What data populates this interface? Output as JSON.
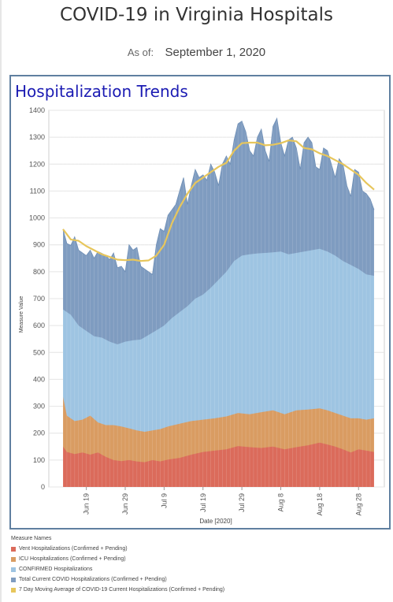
{
  "header": {
    "title": "COVID-19 in Virginia Hospitals",
    "asof_label": "As of:",
    "asof_value": "September 1, 2020"
  },
  "panel": {
    "title": "Hospitalization Trends"
  },
  "colors": {
    "vent": "#db6b5b",
    "icu": "#d99c62",
    "confirmed": "#9ec4e2",
    "total": "#7f9cc0",
    "avg": "#e7c65c",
    "grid": "#e4e4e4"
  },
  "chart_data": {
    "type": "area",
    "xlabel": "Date [2020]",
    "ylabel": "Measure Value",
    "ylim": [
      0,
      1400
    ],
    "yticks": [
      0,
      100,
      200,
      300,
      400,
      500,
      600,
      700,
      800,
      900,
      1000,
      1100,
      1200,
      1300,
      1400
    ],
    "date_range": [
      "2020-06-13",
      "2020-09-01"
    ],
    "xticks": [
      {
        "label": "Jun 19",
        "date": "2020-06-19"
      },
      {
        "label": "Jun 29",
        "date": "2020-06-29"
      },
      {
        "label": "Jul 9",
        "date": "2020-07-09"
      },
      {
        "label": "Jul 19",
        "date": "2020-07-19"
      },
      {
        "label": "Jul 29",
        "date": "2020-07-29"
      },
      {
        "label": "Aug 8",
        "date": "2020-08-08"
      },
      {
        "label": "Aug 18",
        "date": "2020-08-18"
      },
      {
        "label": "Aug 28",
        "date": "2020-08-28"
      }
    ],
    "legend_title": "Measure Names",
    "series": [
      {
        "name": "Vent Hospitalizations (Confirmed + Pending)",
        "key": "vent",
        "anchors": [
          [
            "2020-06-13",
            150
          ],
          [
            "2020-06-14",
            130
          ],
          [
            "2020-06-16",
            122
          ],
          [
            "2020-06-18",
            128
          ],
          [
            "2020-06-20",
            120
          ],
          [
            "2020-06-22",
            128
          ],
          [
            "2020-06-24",
            112
          ],
          [
            "2020-06-26",
            100
          ],
          [
            "2020-06-28",
            96
          ],
          [
            "2020-06-30",
            100
          ],
          [
            "2020-07-02",
            95
          ],
          [
            "2020-07-04",
            92
          ],
          [
            "2020-07-06",
            100
          ],
          [
            "2020-07-08",
            95
          ],
          [
            "2020-07-10",
            102
          ],
          [
            "2020-07-13",
            108
          ],
          [
            "2020-07-16",
            120
          ],
          [
            "2020-07-19",
            130
          ],
          [
            "2020-07-22",
            135
          ],
          [
            "2020-07-25",
            140
          ],
          [
            "2020-07-28",
            152
          ],
          [
            "2020-07-31",
            148
          ],
          [
            "2020-08-03",
            145
          ],
          [
            "2020-08-06",
            150
          ],
          [
            "2020-08-09",
            140
          ],
          [
            "2020-08-12",
            148
          ],
          [
            "2020-08-15",
            155
          ],
          [
            "2020-08-18",
            165
          ],
          [
            "2020-08-20",
            158
          ],
          [
            "2020-08-22",
            150
          ],
          [
            "2020-08-24",
            140
          ],
          [
            "2020-08-26",
            128
          ],
          [
            "2020-08-28",
            140
          ],
          [
            "2020-08-30",
            135
          ],
          [
            "2020-09-01",
            130
          ]
        ]
      },
      {
        "name": "ICU Hospitalizations (Confirmed + Pending)",
        "key": "icu",
        "anchors": [
          [
            "2020-06-13",
            335
          ],
          [
            "2020-06-14",
            265
          ],
          [
            "2020-06-16",
            245
          ],
          [
            "2020-06-18",
            250
          ],
          [
            "2020-06-20",
            265
          ],
          [
            "2020-06-22",
            240
          ],
          [
            "2020-06-24",
            230
          ],
          [
            "2020-06-26",
            230
          ],
          [
            "2020-06-28",
            225
          ],
          [
            "2020-06-30",
            218
          ],
          [
            "2020-07-02",
            210
          ],
          [
            "2020-07-04",
            205
          ],
          [
            "2020-07-06",
            210
          ],
          [
            "2020-07-08",
            215
          ],
          [
            "2020-07-10",
            225
          ],
          [
            "2020-07-13",
            235
          ],
          [
            "2020-07-16",
            245
          ],
          [
            "2020-07-19",
            250
          ],
          [
            "2020-07-22",
            255
          ],
          [
            "2020-07-25",
            262
          ],
          [
            "2020-07-28",
            275
          ],
          [
            "2020-07-31",
            270
          ],
          [
            "2020-08-03",
            278
          ],
          [
            "2020-08-06",
            285
          ],
          [
            "2020-08-09",
            270
          ],
          [
            "2020-08-12",
            285
          ],
          [
            "2020-08-15",
            288
          ],
          [
            "2020-08-18",
            292
          ],
          [
            "2020-08-20",
            285
          ],
          [
            "2020-08-22",
            275
          ],
          [
            "2020-08-24",
            265
          ],
          [
            "2020-08-26",
            255
          ],
          [
            "2020-08-28",
            255
          ],
          [
            "2020-08-30",
            250
          ],
          [
            "2020-09-01",
            255
          ]
        ]
      },
      {
        "name": "CONFIRMED Hospitalizations",
        "key": "confirmed",
        "anchors": [
          [
            "2020-06-13",
            660
          ],
          [
            "2020-06-15",
            640
          ],
          [
            "2020-06-17",
            600
          ],
          [
            "2020-06-19",
            580
          ],
          [
            "2020-06-21",
            560
          ],
          [
            "2020-06-23",
            555
          ],
          [
            "2020-06-25",
            540
          ],
          [
            "2020-06-27",
            530
          ],
          [
            "2020-06-29",
            540
          ],
          [
            "2020-07-01",
            545
          ],
          [
            "2020-07-03",
            548
          ],
          [
            "2020-07-05",
            565
          ],
          [
            "2020-07-07",
            582
          ],
          [
            "2020-07-09",
            600
          ],
          [
            "2020-07-11",
            628
          ],
          [
            "2020-07-13",
            650
          ],
          [
            "2020-07-15",
            672
          ],
          [
            "2020-07-17",
            700
          ],
          [
            "2020-07-19",
            715
          ],
          [
            "2020-07-21",
            740
          ],
          [
            "2020-07-23",
            770
          ],
          [
            "2020-07-25",
            800
          ],
          [
            "2020-07-27",
            840
          ],
          [
            "2020-07-29",
            860
          ],
          [
            "2020-07-31",
            865
          ],
          [
            "2020-08-02",
            868
          ],
          [
            "2020-08-04",
            870
          ],
          [
            "2020-08-06",
            872
          ],
          [
            "2020-08-08",
            875
          ],
          [
            "2020-08-10",
            865
          ],
          [
            "2020-08-12",
            870
          ],
          [
            "2020-08-14",
            875
          ],
          [
            "2020-08-16",
            880
          ],
          [
            "2020-08-18",
            885
          ],
          [
            "2020-08-20",
            875
          ],
          [
            "2020-08-22",
            860
          ],
          [
            "2020-08-24",
            840
          ],
          [
            "2020-08-26",
            825
          ],
          [
            "2020-08-28",
            810
          ],
          [
            "2020-08-30",
            790
          ],
          [
            "2020-09-01",
            785
          ]
        ]
      },
      {
        "name": "Total Current COVID Hospitalizations (Confirmed + Pending)",
        "key": "total",
        "anchors": [
          [
            "2020-06-13",
            958
          ],
          [
            "2020-06-14",
            905
          ],
          [
            "2020-06-15",
            898
          ],
          [
            "2020-06-16",
            930
          ],
          [
            "2020-06-17",
            880
          ],
          [
            "2020-06-18",
            870
          ],
          [
            "2020-06-19",
            860
          ],
          [
            "2020-06-20",
            880
          ],
          [
            "2020-06-21",
            850
          ],
          [
            "2020-06-22",
            875
          ],
          [
            "2020-06-23",
            868
          ],
          [
            "2020-06-24",
            860
          ],
          [
            "2020-06-25",
            845
          ],
          [
            "2020-06-26",
            870
          ],
          [
            "2020-06-27",
            815
          ],
          [
            "2020-06-28",
            820
          ],
          [
            "2020-06-29",
            800
          ],
          [
            "2020-06-30",
            900
          ],
          [
            "2020-07-01",
            880
          ],
          [
            "2020-07-02",
            890
          ],
          [
            "2020-07-03",
            820
          ],
          [
            "2020-07-04",
            810
          ],
          [
            "2020-07-05",
            800
          ],
          [
            "2020-07-06",
            790
          ],
          [
            "2020-07-07",
            900
          ],
          [
            "2020-07-08",
            960
          ],
          [
            "2020-07-09",
            950
          ],
          [
            "2020-07-10",
            1010
          ],
          [
            "2020-07-11",
            1030
          ],
          [
            "2020-07-12",
            1050
          ],
          [
            "2020-07-13",
            1100
          ],
          [
            "2020-07-14",
            1150
          ],
          [
            "2020-07-15",
            1050
          ],
          [
            "2020-07-16",
            1120
          ],
          [
            "2020-07-17",
            1180
          ],
          [
            "2020-07-18",
            1150
          ],
          [
            "2020-07-19",
            1160
          ],
          [
            "2020-07-20",
            1140
          ],
          [
            "2020-07-21",
            1200
          ],
          [
            "2020-07-22",
            1170
          ],
          [
            "2020-07-23",
            1120
          ],
          [
            "2020-07-24",
            1200
          ],
          [
            "2020-07-25",
            1230
          ],
          [
            "2020-07-26",
            1200
          ],
          [
            "2020-07-27",
            1290
          ],
          [
            "2020-07-28",
            1350
          ],
          [
            "2020-07-29",
            1360
          ],
          [
            "2020-07-30",
            1320
          ],
          [
            "2020-07-31",
            1250
          ],
          [
            "2020-08-01",
            1230
          ],
          [
            "2020-08-02",
            1300
          ],
          [
            "2020-08-03",
            1330
          ],
          [
            "2020-08-04",
            1250
          ],
          [
            "2020-08-05",
            1210
          ],
          [
            "2020-08-06",
            1340
          ],
          [
            "2020-08-07",
            1370
          ],
          [
            "2020-08-08",
            1280
          ],
          [
            "2020-08-09",
            1230
          ],
          [
            "2020-08-10",
            1290
          ],
          [
            "2020-08-11",
            1300
          ],
          [
            "2020-08-12",
            1260
          ],
          [
            "2020-08-13",
            1180
          ],
          [
            "2020-08-14",
            1280
          ],
          [
            "2020-08-15",
            1300
          ],
          [
            "2020-08-16",
            1280
          ],
          [
            "2020-08-17",
            1190
          ],
          [
            "2020-08-18",
            1180
          ],
          [
            "2020-08-19",
            1260
          ],
          [
            "2020-08-20",
            1250
          ],
          [
            "2020-08-21",
            1200
          ],
          [
            "2020-08-22",
            1150
          ],
          [
            "2020-08-23",
            1220
          ],
          [
            "2020-08-24",
            1200
          ],
          [
            "2020-08-25",
            1120
          ],
          [
            "2020-08-26",
            1080
          ],
          [
            "2020-08-27",
            1180
          ],
          [
            "2020-08-28",
            1170
          ],
          [
            "2020-08-29",
            1100
          ],
          [
            "2020-08-30",
            1090
          ],
          [
            "2020-08-31",
            1070
          ],
          [
            "2020-09-01",
            1030
          ]
        ]
      },
      {
        "name": "7 Day Moving Average of COVID-19 Current Hospitalizations (Confirmed + Pending)",
        "key": "avg",
        "anchors": [
          [
            "2020-06-13",
            958
          ],
          [
            "2020-06-15",
            920
          ],
          [
            "2020-06-17",
            915
          ],
          [
            "2020-06-19",
            895
          ],
          [
            "2020-06-21",
            880
          ],
          [
            "2020-06-23",
            865
          ],
          [
            "2020-06-25",
            855
          ],
          [
            "2020-06-27",
            845
          ],
          [
            "2020-06-29",
            843
          ],
          [
            "2020-07-01",
            845
          ],
          [
            "2020-07-03",
            840
          ],
          [
            "2020-07-05",
            842
          ],
          [
            "2020-07-07",
            860
          ],
          [
            "2020-07-09",
            900
          ],
          [
            "2020-07-11",
            980
          ],
          [
            "2020-07-13",
            1040
          ],
          [
            "2020-07-15",
            1090
          ],
          [
            "2020-07-17",
            1130
          ],
          [
            "2020-07-19",
            1150
          ],
          [
            "2020-07-21",
            1170
          ],
          [
            "2020-07-23",
            1190
          ],
          [
            "2020-07-25",
            1205
          ],
          [
            "2020-07-27",
            1250
          ],
          [
            "2020-07-29",
            1278
          ],
          [
            "2020-07-31",
            1280
          ],
          [
            "2020-08-02",
            1280
          ],
          [
            "2020-08-04",
            1270
          ],
          [
            "2020-08-06",
            1272
          ],
          [
            "2020-08-08",
            1278
          ],
          [
            "2020-08-10",
            1288
          ],
          [
            "2020-08-12",
            1285
          ],
          [
            "2020-08-14",
            1260
          ],
          [
            "2020-08-16",
            1255
          ],
          [
            "2020-08-18",
            1240
          ],
          [
            "2020-08-20",
            1230
          ],
          [
            "2020-08-22",
            1215
          ],
          [
            "2020-08-24",
            1200
          ],
          [
            "2020-08-26",
            1180
          ],
          [
            "2020-08-28",
            1160
          ],
          [
            "2020-08-30",
            1130
          ],
          [
            "2020-09-01",
            1105
          ]
        ]
      }
    ]
  }
}
